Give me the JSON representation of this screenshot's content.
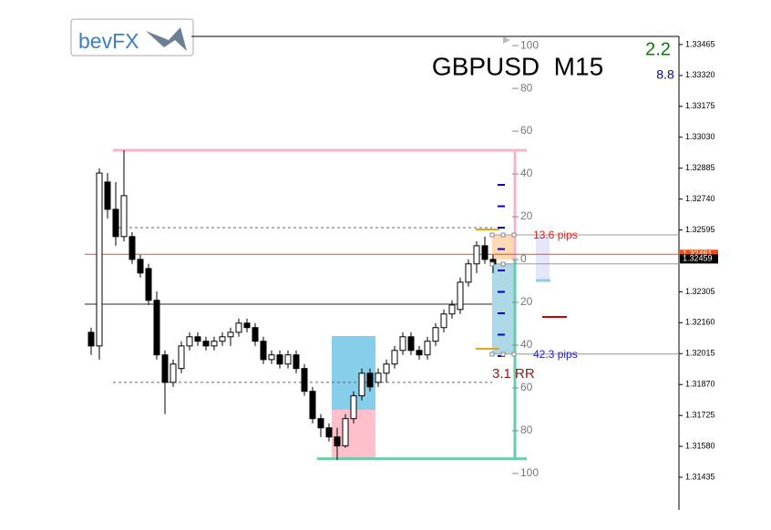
{
  "chart_data": {
    "type": "candlestick",
    "title": "GBPUSD  M15",
    "logo": "bevFX",
    "stats": [
      {
        "value": 2.2,
        "color": "#008000"
      },
      {
        "value": 8.8,
        "color": "#0000cc"
      }
    ],
    "up_color": "#ffffff",
    "down_color": "#000000",
    "open": [
      1.32115,
      1.32051,
      1.3282,
      1.32692,
      1.32564,
      1.32564,
      1.32457,
      1.32414,
      1.32265,
      1.32009,
      1.3188,
      1.31945,
      1.32051,
      1.32094,
      1.32073,
      1.32051,
      1.32073,
      1.32094,
      1.32115,
      1.32158,
      1.32137,
      1.32073,
      1.31987,
      1.32009,
      1.31966,
      1.32009,
      1.31945,
      1.31838,
      1.3171,
      1.31667,
      1.31624,
      1.31582,
      1.3171,
      1.31817,
      1.31923,
      1.3188,
      1.31923,
      1.31966,
      1.3203,
      1.32094,
      1.3203,
      1.32009,
      1.32073,
      1.32137,
      1.32201,
      1.32222,
      1.3235,
      1.32436,
      1.32521,
      1.32457
    ],
    "high": [
      1.32137,
      1.32884,
      1.32862,
      1.3282,
      1.32969,
      1.32585,
      1.32478,
      1.32436,
      1.32307,
      1.3203,
      1.31987,
      1.32073,
      1.32115,
      1.32115,
      1.32094,
      1.32094,
      1.32115,
      1.32137,
      1.32179,
      1.32179,
      1.32158,
      1.32094,
      1.3203,
      1.3203,
      1.3203,
      1.3203,
      1.31966,
      1.31859,
      1.31731,
      1.31688,
      1.31667,
      1.31731,
      1.31838,
      1.31945,
      1.31945,
      1.31945,
      1.31987,
      1.32051,
      1.32115,
      1.32115,
      1.32051,
      1.32094,
      1.32158,
      1.32222,
      1.32265,
      1.32372,
      1.32457,
      1.32542,
      1.32564,
      1.32478
    ],
    "low": [
      1.32009,
      1.31987,
      1.32649,
      1.32521,
      1.32542,
      1.32436,
      1.32372,
      1.32243,
      1.31987,
      1.31731,
      1.31859,
      1.31923,
      1.3203,
      1.32051,
      1.3203,
      1.3203,
      1.32051,
      1.32051,
      1.32094,
      1.32115,
      1.32051,
      1.31966,
      1.31966,
      1.31945,
      1.31945,
      1.31923,
      1.31817,
      1.31688,
      1.31624,
      1.31603,
      1.31517,
      1.31573,
      1.31688,
      1.31795,
      1.31838,
      1.31859,
      1.3188,
      1.31945,
      1.32009,
      1.32009,
      1.31987,
      1.31987,
      1.32051,
      1.32115,
      1.32179,
      1.32201,
      1.32329,
      1.32393,
      1.32436,
      1.32393
    ],
    "close": [
      1.32051,
      1.32862,
      1.32692,
      1.32564,
      1.32756,
      1.32457,
      1.32393,
      1.32265,
      1.32009,
      1.3188,
      1.31966,
      1.32051,
      1.32094,
      1.32073,
      1.32051,
      1.32073,
      1.32094,
      1.32115,
      1.32158,
      1.32137,
      1.32073,
      1.31987,
      1.32009,
      1.31966,
      1.32009,
      1.31945,
      1.31838,
      1.3171,
      1.31667,
      1.31624,
      1.31582,
      1.3171,
      1.31817,
      1.31923,
      1.31859,
      1.31923,
      1.31966,
      1.3203,
      1.32094,
      1.3203,
      1.32009,
      1.32073,
      1.32137,
      1.32201,
      1.32243,
      1.3235,
      1.32436,
      1.32521,
      1.32457,
      1.32436
    ],
    "ylim": [
      1.3129,
      1.33503
    ],
    "yticks": [
      {
        "value": 1.33465,
        "label": "1.33465"
      },
      {
        "value": 1.3332,
        "label": "1.33320"
      },
      {
        "value": 1.33175,
        "label": "1.33175"
      },
      {
        "value": 1.3303,
        "label": "1.33030"
      },
      {
        "value": 1.32885,
        "label": "1.32885"
      },
      {
        "value": 1.3274,
        "label": "1.32740"
      },
      {
        "value": 1.32595,
        "label": "1.32595"
      },
      {
        "value": 1.32305,
        "label": "1.32305"
      },
      {
        "value": 1.3216,
        "label": "1.32160"
      },
      {
        "value": 1.32015,
        "label": "1.32015"
      },
      {
        "value": 1.3187,
        "label": "1.31870"
      },
      {
        "value": 1.31725,
        "label": "1.31725"
      },
      {
        "value": 1.3158,
        "label": "1.31580"
      },
      {
        "value": 1.31435,
        "label": "1.31435"
      }
    ],
    "y2lim": [
      -116.2,
      104.3
    ],
    "y2ticks": [
      100,
      80,
      60,
      40,
      20,
      0,
      {
        "value": -20,
        "label": "20"
      },
      {
        "value": -40,
        "label": "40"
      },
      {
        "value": -60,
        "label": "60"
      },
      {
        "value": -80,
        "label": "80"
      },
      {
        "value": -100,
        "label": "100"
      }
    ],
    "price_labels": [
      {
        "value": 1.32481,
        "label": "1.32481",
        "color": "#e8501a"
      },
      {
        "value": 1.32459,
        "label": "1.32459",
        "color": "#000000"
      }
    ],
    "levels": [
      {
        "price": 1.32969,
        "color": "#f7b6c8",
        "style": "solid"
      },
      {
        "price": 1.31522,
        "color": "#66cdaa",
        "style": "solid"
      },
      {
        "price": 1.32606,
        "color": "#666666",
        "style": "dashed"
      },
      {
        "price": 1.3188,
        "color": "#666666",
        "style": "dashed"
      },
      {
        "price": 1.32247,
        "color": "#555555",
        "style": "solid"
      },
      {
        "price": 1.32481,
        "color": "#e8501a",
        "style": "solid"
      },
      {
        "price": 1.32436,
        "color": "#999999",
        "style": "solid"
      },
      {
        "price": 1.32572,
        "color": "#aaaaaa",
        "style": "solid"
      },
      {
        "price": 1.32013,
        "color": "#aaaaaa",
        "style": "solid"
      }
    ],
    "annotations": [
      {
        "value": 13.6,
        "label": "13.6 pips",
        "color": "#e02020"
      },
      {
        "value": 42.3,
        "label": "42.3 pips",
        "color": "#2020d0"
      },
      {
        "value": 3.1,
        "label": "3.1 RR",
        "color": "#8b1a1a"
      }
    ]
  }
}
